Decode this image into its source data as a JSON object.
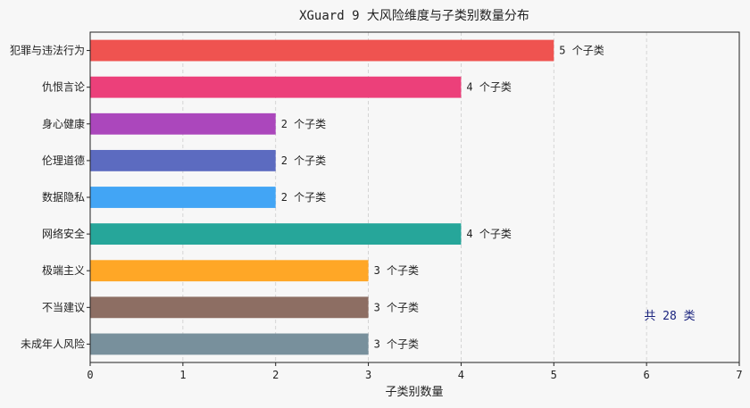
{
  "chart_data": {
    "type": "bar",
    "orientation": "horizontal",
    "title": "XGuard 9 大风险维度与子类别数量分布",
    "xlabel": "子类别数量",
    "ylabel": "",
    "xlim": [
      0,
      7
    ],
    "xticks": [
      0,
      1,
      2,
      3,
      4,
      5,
      6,
      7
    ],
    "grid": "x-dashed",
    "categories": [
      "犯罪与违法行为",
      "仇恨言论",
      "身心健康",
      "伦理道德",
      "数据隐私",
      "网络安全",
      "极端主义",
      "不当建议",
      "未成年人风险"
    ],
    "values": [
      5,
      4,
      2,
      2,
      2,
      4,
      3,
      3,
      3
    ],
    "data_labels": [
      "5 个子类",
      "4 个子类",
      "2 个子类",
      "2 个子类",
      "2 个子类",
      "4 个子类",
      "3 个子类",
      "3 个子类",
      "3 个子类"
    ],
    "colors": [
      "#ef5350",
      "#ec407a",
      "#ab47bc",
      "#5c6bc0",
      "#42a5f5",
      "#26a69a",
      "#ffa726",
      "#8d6e63",
      "#78909c"
    ],
    "annotation": "共 28 类",
    "annotation_color": "#1a237e"
  }
}
